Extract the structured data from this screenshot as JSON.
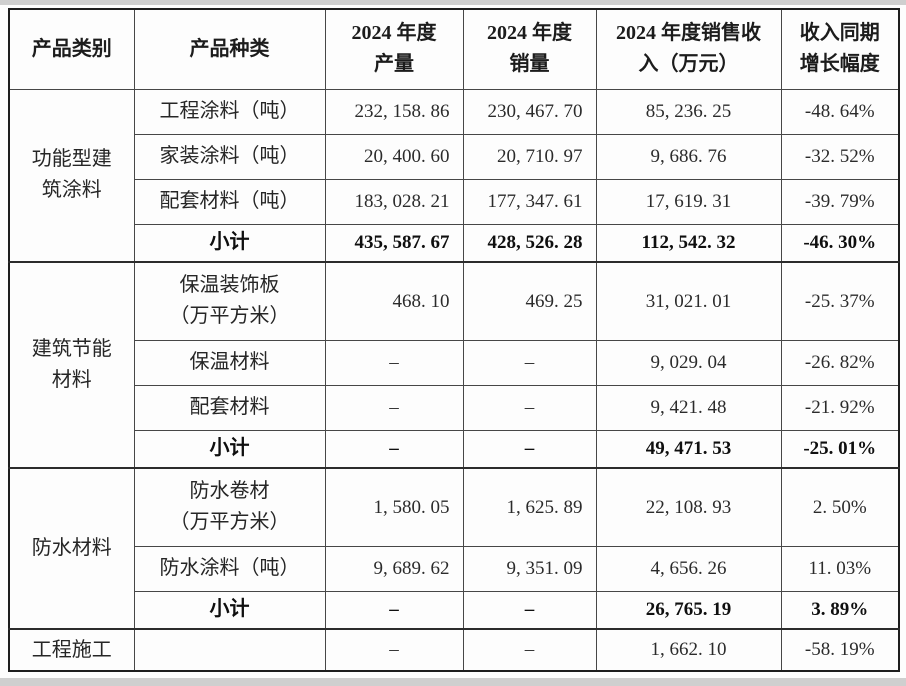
{
  "colors": {
    "outer_border": "#1e1e1e",
    "inner_border": "#474747",
    "text": "#2b2b2b",
    "page_edge": "#cfcfcf"
  },
  "table": {
    "empty_value": "–",
    "headers": [
      "产品类别",
      "产品种类",
      "2024 年度\n产量",
      "2024 年度\n销量",
      "2024 年度销售收\n入（万元）",
      "收入同期\n增长幅度"
    ],
    "groups": [
      {
        "category": "功能型建\n筑涂料",
        "rows": [
          {
            "type": "工程涂料（吨）",
            "production": "232,158.86",
            "sales_volume": "230,467.70",
            "revenue": "85,236.25",
            "growth": "-48.64%",
            "subtotal": false
          },
          {
            "type": "家装涂料（吨）",
            "production": "20,400.60",
            "sales_volume": "20,710.97",
            "revenue": "9,686.76",
            "growth": "-32.52%",
            "subtotal": false
          },
          {
            "type": "配套材料（吨）",
            "production": "183,028.21",
            "sales_volume": "177,347.61",
            "revenue": "17,619.31",
            "growth": "-39.79%",
            "subtotal": false
          },
          {
            "type": "小计",
            "production": "435,587.67",
            "sales_volume": "428,526.28",
            "revenue": "112,542.32",
            "growth": "-46.30%",
            "subtotal": true
          }
        ]
      },
      {
        "category": "建筑节能\n材料",
        "rows": [
          {
            "type": "保温装饰板\n（万平方米）",
            "production": "468.10",
            "sales_volume": "469.25",
            "revenue": "31,021.01",
            "growth": "-25.37%",
            "subtotal": false
          },
          {
            "type": "保温材料",
            "production": "–",
            "sales_volume": "–",
            "revenue": "9,029.04",
            "growth": "-26.82%",
            "subtotal": false
          },
          {
            "type": "配套材料",
            "production": "–",
            "sales_volume": "–",
            "revenue": "9,421.48",
            "growth": "-21.92%",
            "subtotal": false
          },
          {
            "type": "小计",
            "production": "–",
            "sales_volume": "–",
            "revenue": "49,471.53",
            "growth": "-25.01%",
            "subtotal": true
          }
        ]
      },
      {
        "category": "防水材料",
        "rows": [
          {
            "type": "防水卷材\n（万平方米）",
            "production": "1,580.05",
            "sales_volume": "1,625.89",
            "revenue": "22,108.93",
            "growth": "2.50%",
            "subtotal": false
          },
          {
            "type": "防水涂料（吨）",
            "production": "9,689.62",
            "sales_volume": "9,351.09",
            "revenue": "4,656.26",
            "growth": "11.03%",
            "subtotal": false
          },
          {
            "type": "小计",
            "production": "–",
            "sales_volume": "–",
            "revenue": "26,765.19",
            "growth": "3.89%",
            "subtotal": true
          }
        ]
      },
      {
        "category": "工程施工",
        "rows": [
          {
            "type": "",
            "production": "–",
            "sales_volume": "–",
            "revenue": "1,662.10",
            "growth": "-58.19%",
            "subtotal": false
          }
        ]
      }
    ]
  }
}
